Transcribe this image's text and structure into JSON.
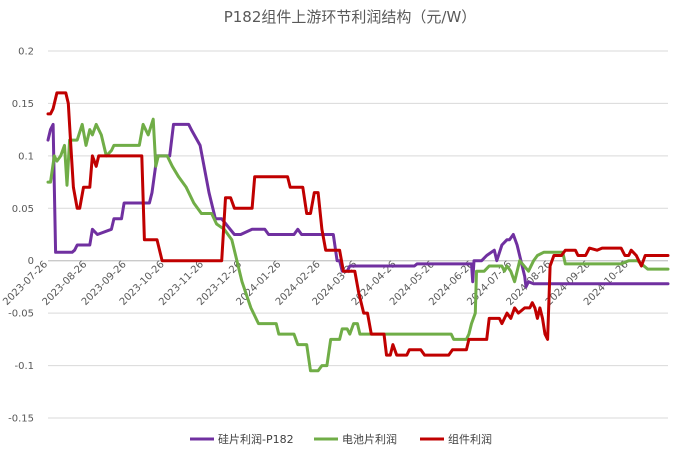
{
  "chart_data": {
    "type": "line",
    "title": "P182组件上游环节利润结构（元/W）",
    "ylim": [
      -0.15,
      0.2
    ],
    "yticks": [
      0.2,
      0.15,
      0.1,
      0.05,
      0,
      -0.05,
      -0.1,
      -0.15
    ],
    "ytick_labels": [
      "0.2",
      "0.15",
      "0.1",
      "0.05",
      "0",
      "-0.05",
      "-0.1",
      "-0.15"
    ],
    "xlim": [
      "2023-07-26",
      "2024-11-26"
    ],
    "xticks": [
      "2023-07-26",
      "2023-08-26",
      "2023-09-26",
      "2023-10-26",
      "2023-11-26",
      "2023-12-26",
      "2024-01-26",
      "2024-02-26",
      "2024-03-26",
      "2024-04-26",
      "2024-05-26",
      "2024-06-26",
      "2024-07-26",
      "2024-08-26",
      "2024-09-26",
      "2024-10-26"
    ],
    "grid": true,
    "legend_position": "bottom",
    "series": [
      {
        "name": "硅片利润-P182",
        "color": "#7030A0",
        "points": [
          [
            "2023-07-26",
            0.115
          ],
          [
            "2023-07-28",
            0.125
          ],
          [
            "2023-07-30",
            0.13
          ],
          [
            "2023-08-01",
            0.008
          ],
          [
            "2023-08-14",
            0.008
          ],
          [
            "2023-08-16",
            0.01
          ],
          [
            "2023-08-18",
            0.015
          ],
          [
            "2023-08-28",
            0.015
          ],
          [
            "2023-08-30",
            0.03
          ],
          [
            "2023-09-03",
            0.025
          ],
          [
            "2023-09-14",
            0.03
          ],
          [
            "2023-09-16",
            0.04
          ],
          [
            "2023-09-22",
            0.04
          ],
          [
            "2023-09-24",
            0.055
          ],
          [
            "2023-10-14",
            0.055
          ],
          [
            "2023-10-16",
            0.065
          ],
          [
            "2023-10-20",
            0.1
          ],
          [
            "2023-10-30",
            0.1
          ],
          [
            "2023-11-02",
            0.13
          ],
          [
            "2023-11-14",
            0.13
          ],
          [
            "2023-11-16",
            0.125
          ],
          [
            "2023-11-23",
            0.11
          ],
          [
            "2023-11-30",
            0.065
          ],
          [
            "2023-12-05",
            0.04
          ],
          [
            "2023-12-10",
            0.04
          ],
          [
            "2023-12-20",
            0.025
          ],
          [
            "2023-12-25",
            0.025
          ],
          [
            "2024-01-03",
            0.03
          ],
          [
            "2024-01-13",
            0.03
          ],
          [
            "2024-01-16",
            0.025
          ],
          [
            "2024-02-05",
            0.025
          ],
          [
            "2024-02-08",
            0.03
          ],
          [
            "2024-02-11",
            0.025
          ],
          [
            "2024-03-07",
            0.025
          ],
          [
            "2024-03-10",
            0.0
          ],
          [
            "2024-03-12",
            0.0
          ],
          [
            "2024-03-14",
            -0.01
          ],
          [
            "2024-03-18",
            -0.01
          ],
          [
            "2024-03-20",
            -0.005
          ],
          [
            "2024-05-10",
            -0.005
          ],
          [
            "2024-05-12",
            -0.003
          ],
          [
            "2024-06-24",
            -0.003
          ],
          [
            "2024-06-25",
            -0.02
          ],
          [
            "2024-06-26",
            0.0
          ],
          [
            "2024-07-02",
            0.0
          ],
          [
            "2024-07-06",
            0.005
          ],
          [
            "2024-07-12",
            0.01
          ],
          [
            "2024-07-14",
            0.0
          ],
          [
            "2024-07-18",
            0.015
          ],
          [
            "2024-07-22",
            0.02
          ],
          [
            "2024-07-24",
            0.02
          ],
          [
            "2024-07-27",
            0.025
          ],
          [
            "2024-07-30",
            0.015
          ],
          [
            "2024-08-02",
            0.0
          ],
          [
            "2024-08-05",
            -0.015
          ],
          [
            "2024-08-06",
            -0.025
          ],
          [
            "2024-08-08",
            -0.02
          ],
          [
            "2024-08-12",
            -0.022
          ],
          [
            "2024-09-05",
            -0.022
          ],
          [
            "2024-09-08",
            -0.022
          ],
          [
            "2024-11-26",
            -0.022
          ]
        ]
      },
      {
        "name": "电池片利润",
        "color": "#70AD47",
        "points": [
          [
            "2023-07-26",
            0.075
          ],
          [
            "2023-07-28",
            0.075
          ],
          [
            "2023-07-31",
            0.1
          ],
          [
            "2023-08-02",
            0.095
          ],
          [
            "2023-08-05",
            0.1
          ],
          [
            "2023-08-08",
            0.11
          ],
          [
            "2023-08-10",
            0.072
          ],
          [
            "2023-08-12",
            0.115
          ],
          [
            "2023-08-18",
            0.115
          ],
          [
            "2023-08-22",
            0.13
          ],
          [
            "2023-08-25",
            0.11
          ],
          [
            "2023-08-28",
            0.125
          ],
          [
            "2023-08-30",
            0.12
          ],
          [
            "2023-09-02",
            0.13
          ],
          [
            "2023-09-06",
            0.12
          ],
          [
            "2023-09-10",
            0.1
          ],
          [
            "2023-09-14",
            0.105
          ],
          [
            "2023-09-16",
            0.11
          ],
          [
            "2023-10-06",
            0.11
          ],
          [
            "2023-10-09",
            0.13
          ],
          [
            "2023-10-13",
            0.12
          ],
          [
            "2023-10-17",
            0.135
          ],
          [
            "2023-10-19",
            0.09
          ],
          [
            "2023-10-21",
            0.1
          ],
          [
            "2023-10-28",
            0.1
          ],
          [
            "2023-11-01",
            0.09
          ],
          [
            "2023-11-06",
            0.08
          ],
          [
            "2023-11-12",
            0.07
          ],
          [
            "2023-11-18",
            0.055
          ],
          [
            "2023-11-24",
            0.045
          ],
          [
            "2023-12-02",
            0.045
          ],
          [
            "2023-12-06",
            0.035
          ],
          [
            "2023-12-12",
            0.03
          ],
          [
            "2023-12-18",
            0.02
          ],
          [
            "2023-12-22",
            0.0
          ],
          [
            "2023-12-26",
            -0.02
          ],
          [
            "2024-01-02",
            -0.045
          ],
          [
            "2024-01-08",
            -0.06
          ],
          [
            "2024-01-22",
            -0.06
          ],
          [
            "2024-01-24",
            -0.07
          ],
          [
            "2024-02-05",
            -0.07
          ],
          [
            "2024-02-08",
            -0.08
          ],
          [
            "2024-02-15",
            -0.08
          ],
          [
            "2024-02-18",
            -0.105
          ],
          [
            "2024-02-24",
            -0.105
          ],
          [
            "2024-02-27",
            -0.1
          ],
          [
            "2024-03-02",
            -0.1
          ],
          [
            "2024-03-05",
            -0.075
          ],
          [
            "2024-03-12",
            -0.075
          ],
          [
            "2024-03-14",
            -0.065
          ],
          [
            "2024-03-18",
            -0.065
          ],
          [
            "2024-03-20",
            -0.07
          ],
          [
            "2024-03-23",
            -0.06
          ],
          [
            "2024-03-26",
            -0.06
          ],
          [
            "2024-03-28",
            -0.07
          ],
          [
            "2024-05-26",
            -0.07
          ],
          [
            "2024-06-08",
            -0.07
          ],
          [
            "2024-06-10",
            -0.075
          ],
          [
            "2024-06-20",
            -0.075
          ],
          [
            "2024-06-22",
            -0.07
          ],
          [
            "2024-06-24",
            -0.06
          ],
          [
            "2024-06-27",
            -0.05
          ],
          [
            "2024-06-28",
            -0.01
          ],
          [
            "2024-07-04",
            -0.01
          ],
          [
            "2024-07-08",
            -0.005
          ],
          [
            "2024-07-18",
            -0.005
          ],
          [
            "2024-07-20",
            -0.01
          ],
          [
            "2024-07-22",
            -0.005
          ],
          [
            "2024-07-25",
            -0.01
          ],
          [
            "2024-07-28",
            -0.02
          ],
          [
            "2024-08-01",
            0.0
          ],
          [
            "2024-08-08",
            -0.01
          ],
          [
            "2024-08-12",
            0.0
          ],
          [
            "2024-08-15",
            0.005
          ],
          [
            "2024-08-20",
            0.008
          ],
          [
            "2024-09-04",
            0.008
          ],
          [
            "2024-09-06",
            -0.003
          ],
          [
            "2024-10-20",
            -0.003
          ],
          [
            "2024-10-26",
            0.0
          ],
          [
            "2024-11-02",
            0.0
          ],
          [
            "2024-11-10",
            -0.008
          ],
          [
            "2024-11-26",
            -0.008
          ]
        ]
      },
      {
        "name": "组件利润",
        "color": "#C00000",
        "points": [
          [
            "2023-07-26",
            0.14
          ],
          [
            "2023-07-28",
            0.14
          ],
          [
            "2023-07-30",
            0.145
          ],
          [
            "2023-08-02",
            0.16
          ],
          [
            "2023-08-09",
            0.16
          ],
          [
            "2023-08-11",
            0.15
          ],
          [
            "2023-08-13",
            0.11
          ],
          [
            "2023-08-15",
            0.07
          ],
          [
            "2023-08-18",
            0.05
          ],
          [
            "2023-08-20",
            0.05
          ],
          [
            "2023-08-23",
            0.07
          ],
          [
            "2023-08-28",
            0.07
          ],
          [
            "2023-08-30",
            0.1
          ],
          [
            "2023-09-02",
            0.09
          ],
          [
            "2023-09-04",
            0.1
          ],
          [
            "2023-10-08",
            0.1
          ],
          [
            "2023-10-10",
            0.02
          ],
          [
            "2023-10-20",
            0.02
          ],
          [
            "2023-10-24",
            0.0
          ],
          [
            "2023-12-10",
            0.0
          ],
          [
            "2023-12-13",
            0.06
          ],
          [
            "2023-12-17",
            0.06
          ],
          [
            "2023-12-20",
            0.05
          ],
          [
            "2024-01-03",
            0.05
          ],
          [
            "2024-01-05",
            0.08
          ],
          [
            "2024-01-09",
            0.08
          ],
          [
            "2024-01-12",
            0.08
          ],
          [
            "2024-01-31",
            0.08
          ],
          [
            "2024-02-02",
            0.07
          ],
          [
            "2024-02-12",
            0.07
          ],
          [
            "2024-02-15",
            0.045
          ],
          [
            "2024-02-18",
            0.045
          ],
          [
            "2024-02-21",
            0.065
          ],
          [
            "2024-02-24",
            0.065
          ],
          [
            "2024-02-27",
            0.03
          ],
          [
            "2024-03-01",
            0.01
          ],
          [
            "2024-03-12",
            0.01
          ],
          [
            "2024-03-15",
            -0.01
          ],
          [
            "2024-03-24",
            -0.01
          ],
          [
            "2024-03-27",
            -0.03
          ],
          [
            "2024-03-31",
            -0.05
          ],
          [
            "2024-04-03",
            -0.05
          ],
          [
            "2024-04-06",
            -0.07
          ],
          [
            "2024-04-16",
            -0.07
          ],
          [
            "2024-04-18",
            -0.09
          ],
          [
            "2024-04-21",
            -0.09
          ],
          [
            "2024-04-23",
            -0.08
          ],
          [
            "2024-04-26",
            -0.09
          ],
          [
            "2024-05-04",
            -0.09
          ],
          [
            "2024-05-06",
            -0.085
          ],
          [
            "2024-05-15",
            -0.085
          ],
          [
            "2024-05-18",
            -0.09
          ],
          [
            "2024-06-06",
            -0.09
          ],
          [
            "2024-06-09",
            -0.085
          ],
          [
            "2024-06-20",
            -0.085
          ],
          [
            "2024-06-22",
            -0.075
          ],
          [
            "2024-07-06",
            -0.075
          ],
          [
            "2024-07-08",
            -0.055
          ],
          [
            "2024-07-16",
            -0.055
          ],
          [
            "2024-07-18",
            -0.06
          ],
          [
            "2024-07-22",
            -0.05
          ],
          [
            "2024-07-25",
            -0.055
          ],
          [
            "2024-07-28",
            -0.045
          ],
          [
            "2024-07-31",
            -0.05
          ],
          [
            "2024-08-05",
            -0.045
          ],
          [
            "2024-08-09",
            -0.045
          ],
          [
            "2024-08-11",
            -0.04
          ],
          [
            "2024-08-13",
            -0.045
          ],
          [
            "2024-08-15",
            -0.055
          ],
          [
            "2024-08-17",
            -0.045
          ],
          [
            "2024-08-19",
            -0.055
          ],
          [
            "2024-08-21",
            -0.07
          ],
          [
            "2024-08-23",
            -0.075
          ],
          [
            "2024-08-25",
            -0.005
          ],
          [
            "2024-08-28",
            0.005
          ],
          [
            "2024-09-03",
            0.005
          ],
          [
            "2024-09-06",
            0.01
          ],
          [
            "2024-09-14",
            0.01
          ],
          [
            "2024-09-16",
            0.005
          ],
          [
            "2024-09-22",
            0.005
          ],
          [
            "2024-09-25",
            0.012
          ],
          [
            "2024-10-01",
            0.01
          ],
          [
            "2024-10-05",
            0.012
          ],
          [
            "2024-10-20",
            0.012
          ],
          [
            "2024-10-23",
            0.005
          ],
          [
            "2024-10-26",
            0.005
          ],
          [
            "2024-10-28",
            0.01
          ],
          [
            "2024-11-01",
            0.005
          ],
          [
            "2024-11-05",
            -0.005
          ],
          [
            "2024-11-08",
            0.005
          ],
          [
            "2024-11-26",
            0.005
          ]
        ]
      }
    ]
  }
}
